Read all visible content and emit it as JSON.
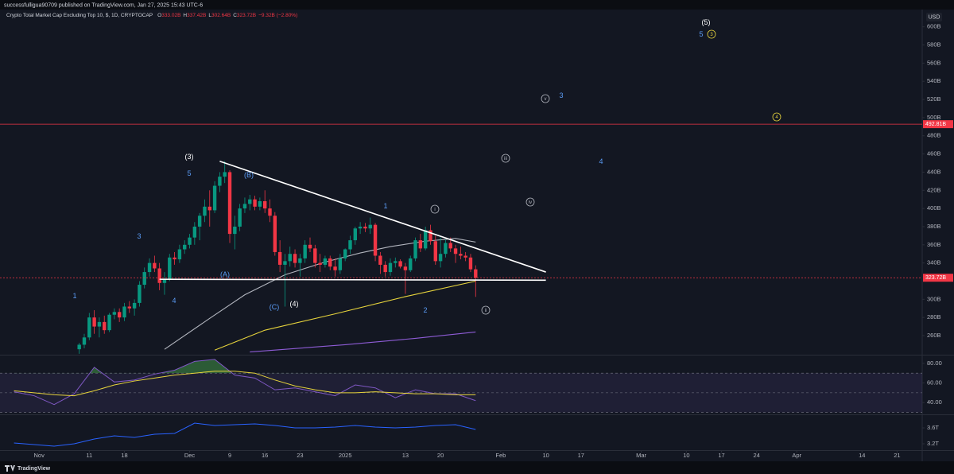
{
  "header": {
    "publisher": "successfulligua90709 published on TradingView.com, Jan 27, 2025 15:43 UTC-6",
    "brand": "TradingView",
    "currency_button": "USD"
  },
  "chart_data": {
    "type": "candlestick",
    "title": "Crypto Total Market Cap Excluding Top 10, $, 1D, CRYPTOCAP",
    "ohlc_legend": [
      {
        "label": "O",
        "value": "333.02B"
      },
      {
        "label": "H",
        "value": "337.42B"
      },
      {
        "label": "L",
        "value": "302.64B"
      },
      {
        "label": "C",
        "value": "323.72B"
      }
    ],
    "change": "−9.32B (−2.80%)",
    "up_color": "#089981",
    "down_color": "#f23645",
    "x": [
      "2024-11-09",
      "2024-11-10",
      "2024-11-11",
      "2024-11-12",
      "2024-11-13",
      "2024-11-14",
      "2024-11-15",
      "2024-11-16",
      "2024-11-17",
      "2024-11-18",
      "2024-11-19",
      "2024-11-20",
      "2024-11-21",
      "2024-11-22",
      "2024-11-23",
      "2024-11-24",
      "2024-11-25",
      "2024-11-26",
      "2024-11-27",
      "2024-11-28",
      "2024-11-29",
      "2024-11-30",
      "2024-12-01",
      "2024-12-02",
      "2024-12-03",
      "2024-12-04",
      "2024-12-05",
      "2024-12-06",
      "2024-12-07",
      "2024-12-08",
      "2024-12-09",
      "2024-12-10",
      "2024-12-11",
      "2024-12-12",
      "2024-12-13",
      "2024-12-14",
      "2024-12-15",
      "2024-12-16",
      "2024-12-17",
      "2024-12-18",
      "2024-12-19",
      "2024-12-20",
      "2024-12-21",
      "2024-12-22",
      "2024-12-23",
      "2024-12-24",
      "2024-12-25",
      "2024-12-26",
      "2024-12-27",
      "2024-12-28",
      "2024-12-29",
      "2024-12-30",
      "2024-12-31",
      "2025-01-01",
      "2025-01-02",
      "2025-01-03",
      "2025-01-04",
      "2025-01-05",
      "2025-01-06",
      "2025-01-07",
      "2025-01-08",
      "2025-01-09",
      "2025-01-10",
      "2025-01-11",
      "2025-01-12",
      "2025-01-13",
      "2025-01-14",
      "2025-01-15",
      "2025-01-16",
      "2025-01-17",
      "2025-01-18",
      "2025-01-19",
      "2025-01-20",
      "2025-01-21",
      "2025-01-22",
      "2025-01-23",
      "2025-01-24",
      "2025-01-25",
      "2025-01-26",
      "2025-01-27"
    ],
    "open": [
      245,
      250,
      258,
      280,
      270,
      275,
      266,
      283,
      286,
      280,
      292,
      290,
      296,
      316,
      330,
      340,
      334,
      318,
      322,
      346,
      344,
      355,
      360,
      368,
      380,
      392,
      402,
      398,
      425,
      435,
      440,
      372,
      380,
      400,
      405,
      410,
      402,
      408,
      400,
      392,
      352,
      338,
      342,
      350,
      340,
      345,
      360,
      356,
      340,
      338,
      345,
      336,
      332,
      345,
      355,
      365,
      378,
      380,
      378,
      382,
      348,
      338,
      330,
      340,
      342,
      336,
      332,
      345,
      365,
      356,
      376,
      364,
      342,
      350,
      362,
      356,
      350,
      348,
      346,
      333.02
    ],
    "high": [
      252,
      262,
      285,
      288,
      280,
      282,
      285,
      290,
      290,
      296,
      298,
      300,
      320,
      335,
      345,
      348,
      340,
      330,
      350,
      352,
      360,
      365,
      372,
      385,
      395,
      410,
      420,
      430,
      440,
      452,
      442,
      392,
      405,
      412,
      415,
      414,
      412,
      420,
      410,
      396,
      365,
      350,
      358,
      355,
      350,
      365,
      368,
      360,
      350,
      348,
      348,
      345,
      350,
      356,
      370,
      380,
      385,
      384,
      390,
      384,
      352,
      342,
      345,
      346,
      344,
      340,
      348,
      368,
      372,
      380,
      382,
      370,
      368,
      366,
      368,
      360,
      358,
      352,
      350,
      337.42
    ],
    "low": [
      240,
      246,
      255,
      262,
      258,
      262,
      264,
      278,
      275,
      276,
      285,
      282,
      292,
      312,
      325,
      330,
      310,
      305,
      320,
      338,
      340,
      350,
      356,
      360,
      365,
      385,
      380,
      395,
      418,
      428,
      362,
      355,
      375,
      395,
      398,
      398,
      398,
      395,
      385,
      348,
      330,
      292,
      336,
      335,
      325,
      340,
      352,
      335,
      330,
      335,
      332,
      325,
      328,
      342,
      350,
      360,
      372,
      374,
      372,
      342,
      328,
      325,
      326,
      335,
      334,
      306,
      330,
      342,
      352,
      354,
      360,
      338,
      335,
      346,
      352,
      340,
      344,
      342,
      330,
      302.64
    ],
    "close": [
      250,
      258,
      280,
      270,
      275,
      266,
      283,
      286,
      280,
      292,
      290,
      296,
      316,
      330,
      340,
      334,
      318,
      322,
      346,
      344,
      355,
      360,
      368,
      380,
      392,
      402,
      398,
      425,
      435,
      440,
      372,
      380,
      400,
      405,
      410,
      402,
      408,
      400,
      392,
      352,
      338,
      342,
      350,
      340,
      345,
      360,
      356,
      340,
      338,
      345,
      336,
      332,
      345,
      355,
      365,
      378,
      380,
      378,
      382,
      348,
      338,
      330,
      340,
      342,
      336,
      332,
      345,
      365,
      356,
      376,
      364,
      342,
      350,
      362,
      356,
      350,
      348,
      346,
      333.02,
      323.72
    ],
    "xlim": [
      "2024-10-25",
      "2025-04-26"
    ],
    "xticks": [
      {
        "value": "2024-11-01",
        "label": "Nov"
      },
      {
        "value": "2024-11-11",
        "label": "11"
      },
      {
        "value": "2024-11-18",
        "label": "18"
      },
      {
        "value": "2024-12-01",
        "label": "Dec"
      },
      {
        "value": "2024-12-09",
        "label": "9"
      },
      {
        "value": "2024-12-16",
        "label": "16"
      },
      {
        "value": "2024-12-23",
        "label": "23"
      },
      {
        "value": "2025-01-01",
        "label": "2025"
      },
      {
        "value": "2025-01-13",
        "label": "13"
      },
      {
        "value": "2025-01-20",
        "label": "20"
      },
      {
        "value": "2025-02-01",
        "label": "Feb"
      },
      {
        "value": "2025-02-10",
        "label": "10"
      },
      {
        "value": "2025-02-17",
        "label": "17"
      },
      {
        "value": "2025-03-01",
        "label": "Mar"
      },
      {
        "value": "2025-03-10",
        "label": "10"
      },
      {
        "value": "2025-03-17",
        "label": "17"
      },
      {
        "value": "2025-03-24",
        "label": "24"
      },
      {
        "value": "2025-04-01",
        "label": "Apr"
      },
      {
        "value": "2025-04-14",
        "label": "14"
      },
      {
        "value": "2025-04-21",
        "label": "21"
      }
    ],
    "ylim": [
      239,
      619
    ],
    "yticks": [
      {
        "value": 260,
        "label": "260B"
      },
      {
        "value": 280,
        "label": "280B"
      },
      {
        "value": 300,
        "label": "300B"
      },
      {
        "value": 340,
        "label": "340B"
      },
      {
        "value": 360,
        "label": "360B"
      },
      {
        "value": 380,
        "label": "380B"
      },
      {
        "value": 400,
        "label": "400B"
      },
      {
        "value": 420,
        "label": "420B"
      },
      {
        "value": 440,
        "label": "440B"
      },
      {
        "value": 460,
        "label": "460B"
      },
      {
        "value": 480,
        "label": "480B"
      },
      {
        "value": 500,
        "label": "500B"
      },
      {
        "value": 520,
        "label": "520B"
      },
      {
        "value": 540,
        "label": "540B"
      },
      {
        "value": 560,
        "label": "560B"
      },
      {
        "value": 580,
        "label": "580B"
      },
      {
        "value": 600,
        "label": "600B"
      }
    ],
    "moving_averages": [
      {
        "color": "#b2b5be",
        "x": [
          "2024-11-26",
          "2024-12-05",
          "2024-12-12",
          "2024-12-20",
          "2024-12-28",
          "2025-01-04",
          "2025-01-10",
          "2025-01-17",
          "2025-01-23",
          "2025-01-27"
        ],
        "values": [
          245,
          279,
          305,
          327,
          341,
          351,
          358,
          364,
          367,
          363
        ]
      },
      {
        "color": "#e6d33c",
        "x": [
          "2024-12-06",
          "2024-12-16",
          "2024-12-30",
          "2025-01-13",
          "2025-01-27"
        ],
        "values": [
          244,
          266,
          284,
          303,
          320
        ]
      },
      {
        "color": "#8e5cd6",
        "x": [
          "2024-12-13",
          "2025-01-01",
          "2025-01-15",
          "2025-01-27"
        ],
        "values": [
          242,
          250,
          257,
          264
        ]
      }
    ],
    "trendlines": [
      {
        "color": "#ffffff",
        "x": [
          "2024-12-07",
          "2025-02-10"
        ],
        "values": [
          452,
          330
        ]
      },
      {
        "color": "#ffffff",
        "x": [
          "2024-11-25",
          "2025-02-10"
        ],
        "values": [
          322,
          321
        ]
      }
    ],
    "hlines": [
      {
        "color": "#f23645",
        "value": 492.81,
        "label": "492.81B"
      }
    ],
    "price_line": {
      "color": "#f23645",
      "value": 323.72,
      "label": "323.72B"
    },
    "annotations": [
      {
        "text": "(3)",
        "color": "#ffffff",
        "circled": false
      },
      {
        "text": "5",
        "color": "#5b9cf6",
        "circled": false
      },
      {
        "text": "(B)",
        "color": "#5b9cf6",
        "circled": false
      },
      {
        "text": "3",
        "color": "#5b9cf6",
        "circled": false
      },
      {
        "text": "1",
        "color": "#5b9cf6",
        "circled": false
      },
      {
        "text": "4",
        "color": "#5b9cf6",
        "circled": false
      },
      {
        "text": "(A)",
        "color": "#5b9cf6",
        "circled": false
      },
      {
        "text": "(C)",
        "color": "#5b9cf6",
        "circled": false
      },
      {
        "text": "(4)",
        "color": "#ffffff",
        "circled": false
      },
      {
        "text": "1",
        "color": "#5b9cf6",
        "circled": false
      },
      {
        "text": "i",
        "color": "#b2b5be",
        "circled": true
      },
      {
        "text": "2",
        "color": "#5b9cf6",
        "circled": false
      },
      {
        "text": "ii",
        "color": "#b2b5be",
        "circled": true
      },
      {
        "text": "iii",
        "color": "#b2b5be",
        "circled": true
      },
      {
        "text": "iv",
        "color": "#b2b5be",
        "circled": true
      },
      {
        "text": "v",
        "color": "#b2b5be",
        "circled": true
      },
      {
        "text": "3",
        "color": "#5b9cf6",
        "circled": false
      },
      {
        "text": "4",
        "color": "#5b9cf6",
        "circled": false
      },
      {
        "text": "(5)",
        "color": "#ffffff",
        "circled": false
      },
      {
        "text": "5",
        "color": "#5b9cf6",
        "circled": false
      },
      {
        "text": "3",
        "color": "#e6d33c",
        "circled": true
      },
      {
        "text": "4",
        "color": "#e6d33c",
        "circled": true
      }
    ],
    "panels": [
      {
        "ylim": [
          28,
          88
        ],
        "yticks": [
          {
            "value": 40,
            "label": "40.00"
          },
          {
            "value": 60,
            "label": "60.00"
          },
          {
            "value": 80,
            "label": "80.00"
          }
        ],
        "levels": [
          70,
          50,
          30
        ],
        "band": [
          30,
          70
        ],
        "band_color": "#7e57c2",
        "overbought_fill": "#4caf50",
        "x": [
          "2024-10-27",
          "2024-10-31",
          "2024-11-04",
          "2024-11-08",
          "2024-11-12",
          "2024-11-16",
          "2024-11-20",
          "2024-11-24",
          "2024-11-28",
          "2024-12-02",
          "2024-12-06",
          "2024-12-10",
          "2024-12-14",
          "2024-12-18",
          "2024-12-22",
          "2024-12-26",
          "2024-12-30",
          "2025-01-03",
          "2025-01-07",
          "2025-01-11",
          "2025-01-15",
          "2025-01-19",
          "2025-01-23",
          "2025-01-27"
        ],
        "series": [
          {
            "color": "#7e57c2",
            "values": [
              51,
              47,
              38,
              49,
              76,
              61,
              63,
              69,
              73,
              82,
              84,
              68,
              65,
              53,
              55,
              51,
              47,
              58,
              55,
              45,
              53,
              49,
              49,
              42
            ]
          },
          {
            "color": "#e6d33c",
            "values": [
              52,
              50,
              48,
              47,
              52,
              58,
              62,
              65,
              68,
              70,
              72,
              72,
              70,
              63,
              57,
              53,
              50,
              50,
              51,
              50,
              49,
              49,
              48,
              48
            ]
          }
        ]
      },
      {
        "ylim": [
          3.04,
          3.92
        ],
        "yticks": [
          {
            "value": 3.2,
            "label": "3.2T"
          },
          {
            "value": 3.6,
            "label": "3.6T"
          }
        ],
        "x": [
          "2024-10-27",
          "2024-10-31",
          "2024-11-04",
          "2024-11-08",
          "2024-11-12",
          "2024-11-16",
          "2024-11-20",
          "2024-11-24",
          "2024-11-28",
          "2024-12-02",
          "2024-12-06",
          "2024-12-10",
          "2024-12-14",
          "2024-12-18",
          "2024-12-22",
          "2024-12-26",
          "2024-12-30",
          "2025-01-03",
          "2025-01-07",
          "2025-01-11",
          "2025-01-15",
          "2025-01-19",
          "2025-01-23",
          "2025-01-27"
        ],
        "series": [
          {
            "color": "#2962ff",
            "values": [
              3.22,
              3.18,
              3.14,
              3.2,
              3.32,
              3.4,
              3.36,
              3.44,
              3.46,
              3.72,
              3.66,
              3.68,
              3.7,
              3.66,
              3.6,
              3.6,
              3.62,
              3.66,
              3.62,
              3.6,
              3.62,
              3.66,
              3.68,
              3.56
            ]
          }
        ]
      }
    ]
  }
}
